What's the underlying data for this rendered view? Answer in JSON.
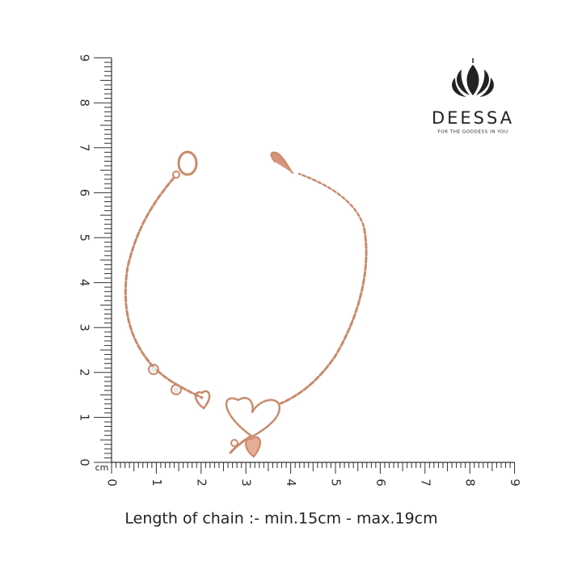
{
  "brand": {
    "name": "DEESSA",
    "tagline": "FOR THE GODDESS IN YOU"
  },
  "ruler": {
    "unit": "cm",
    "vertical_labels": [
      0,
      1,
      2,
      3,
      4,
      5,
      6,
      7,
      8,
      9
    ],
    "horizontal_labels": [
      0,
      1,
      2,
      3,
      4,
      5,
      6,
      7,
      8,
      9
    ]
  },
  "caption": "Length of chain :- min.15cm - max.19cm"
}
